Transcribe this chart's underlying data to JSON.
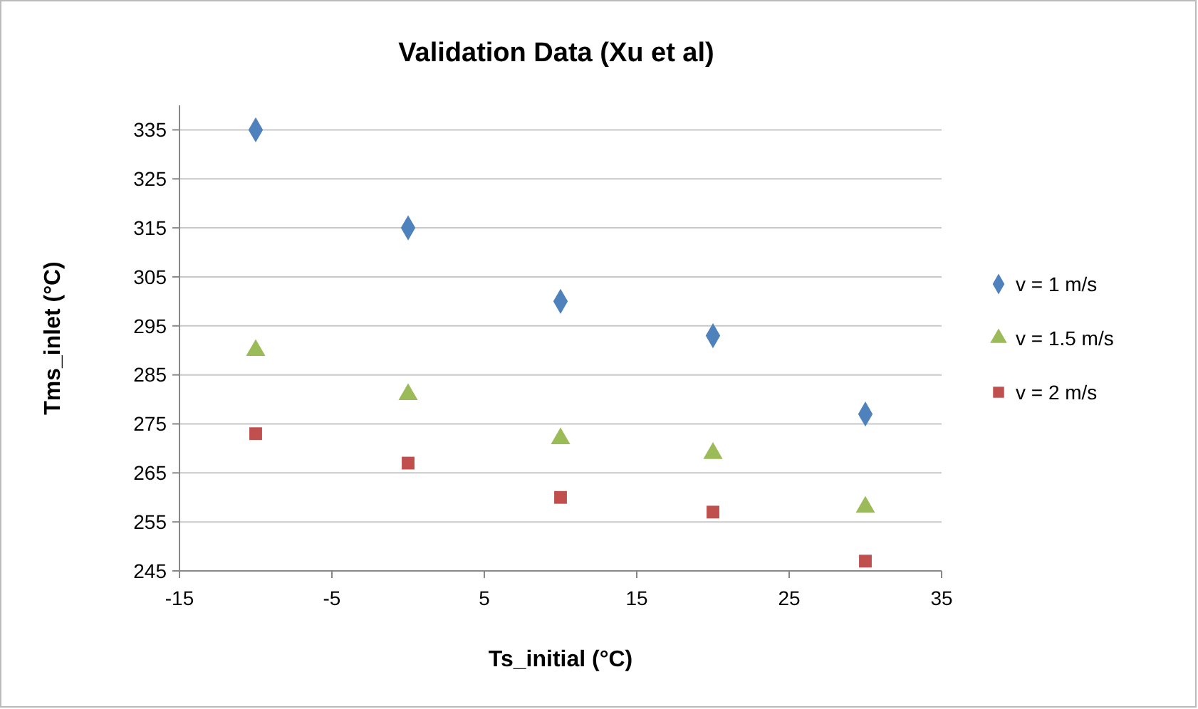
{
  "chart_data": {
    "type": "scatter",
    "title": "Validation Data (Xu et al)",
    "xlabel": "Ts_initial (°C)",
    "ylabel": "Tms_inlet (°C)",
    "x": [
      -10,
      0,
      10,
      20,
      30
    ],
    "series": [
      {
        "name": "v = 1 m/s",
        "color": "#4f81bd",
        "marker": "diamond",
        "values": [
          335,
          315,
          300,
          293,
          277
        ]
      },
      {
        "name": "v = 1.5 m/s",
        "color": "#9bbb59",
        "marker": "triangle",
        "values": [
          290,
          281,
          272,
          269,
          258
        ]
      },
      {
        "name": "v = 2 m/s",
        "color": "#c0504d",
        "marker": "square",
        "values": [
          273,
          267,
          260,
          257,
          247
        ]
      }
    ],
    "xlim": [
      -15,
      35
    ],
    "xticks": [
      -15,
      -5,
      5,
      15,
      25,
      35
    ],
    "ylim": [
      245,
      340
    ],
    "yticks": [
      245,
      255,
      265,
      275,
      285,
      295,
      305,
      315,
      325,
      335
    ],
    "grid": "y",
    "legend": "right"
  }
}
